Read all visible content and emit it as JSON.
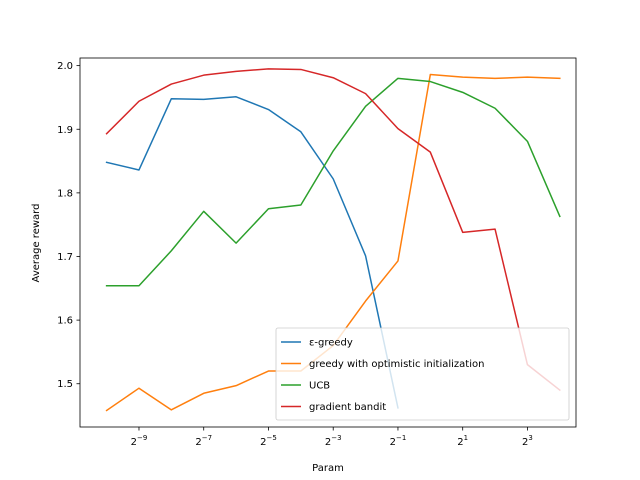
{
  "chart_data": {
    "type": "line",
    "title": "",
    "xlabel": "Param",
    "ylabel": "Average reward",
    "x_scale": "log2",
    "x_ticks": [
      {
        "value": 0.001953125,
        "base": "2",
        "exp": "−9"
      },
      {
        "value": 0.0078125,
        "base": "2",
        "exp": "−7"
      },
      {
        "value": 0.03125,
        "base": "2",
        "exp": "−5"
      },
      {
        "value": 0.125,
        "base": "2",
        "exp": "−3"
      },
      {
        "value": 0.5,
        "base": "2",
        "exp": "−1"
      },
      {
        "value": 2,
        "base": "2",
        "exp": "1"
      },
      {
        "value": 8,
        "base": "2",
        "exp": "3"
      }
    ],
    "y_ticks": [
      "1.5",
      "1.6",
      "1.7",
      "1.8",
      "1.9",
      "2.0"
    ],
    "y_tick_values": [
      1.5,
      1.6,
      1.7,
      1.8,
      1.9,
      2.0
    ],
    "xlim": [
      0.0005524272,
      22.627417
    ],
    "ylim": [
      1.432,
      2.012
    ],
    "grid": false,
    "legend_position": "lower-right",
    "series": [
      {
        "name": "ε-greedy",
        "color": "#1f77b4",
        "x": [
          0.0009765625,
          0.001953125,
          0.00390625,
          0.0078125,
          0.015625,
          0.03125,
          0.0625,
          0.125,
          0.25,
          0.5
        ],
        "values": [
          1.848,
          1.836,
          1.948,
          1.947,
          1.951,
          1.931,
          1.896,
          1.822,
          1.701,
          1.462
        ]
      },
      {
        "name": "greedy with optimistic initialization",
        "color": "#ff7f0e",
        "x": [
          0.0009765625,
          0.001953125,
          0.00390625,
          0.0078125,
          0.015625,
          0.03125,
          0.0625,
          0.125,
          0.25,
          0.5,
          1,
          2,
          4,
          8,
          16
        ],
        "values": [
          1.458,
          1.493,
          1.459,
          1.485,
          1.497,
          1.52,
          1.52,
          1.56,
          1.63,
          1.693,
          1.986,
          1.982,
          1.98,
          1.982,
          1.98
        ]
      },
      {
        "name": "UCB",
        "color": "#2ca02c",
        "x": [
          0.0009765625,
          0.001953125,
          0.00390625,
          0.0078125,
          0.015625,
          0.03125,
          0.0625,
          0.125,
          0.25,
          0.5,
          1,
          2,
          4,
          8,
          16
        ],
        "values": [
          1.654,
          1.654,
          1.709,
          1.771,
          1.721,
          1.775,
          1.781,
          1.866,
          1.936,
          1.98,
          1.975,
          1.958,
          1.933,
          1.881,
          1.763
        ]
      },
      {
        "name": "gradient bandit",
        "color": "#d62728",
        "x": [
          0.0009765625,
          0.001953125,
          0.00390625,
          0.0078125,
          0.015625,
          0.03125,
          0.0625,
          0.125,
          0.25,
          0.5,
          1,
          2,
          4,
          8,
          16
        ],
        "values": [
          1.893,
          1.944,
          1.971,
          1.985,
          1.991,
          1.995,
          1.994,
          1.981,
          1.956,
          1.901,
          1.864,
          1.738,
          1.743,
          1.53,
          1.49
        ]
      }
    ]
  }
}
